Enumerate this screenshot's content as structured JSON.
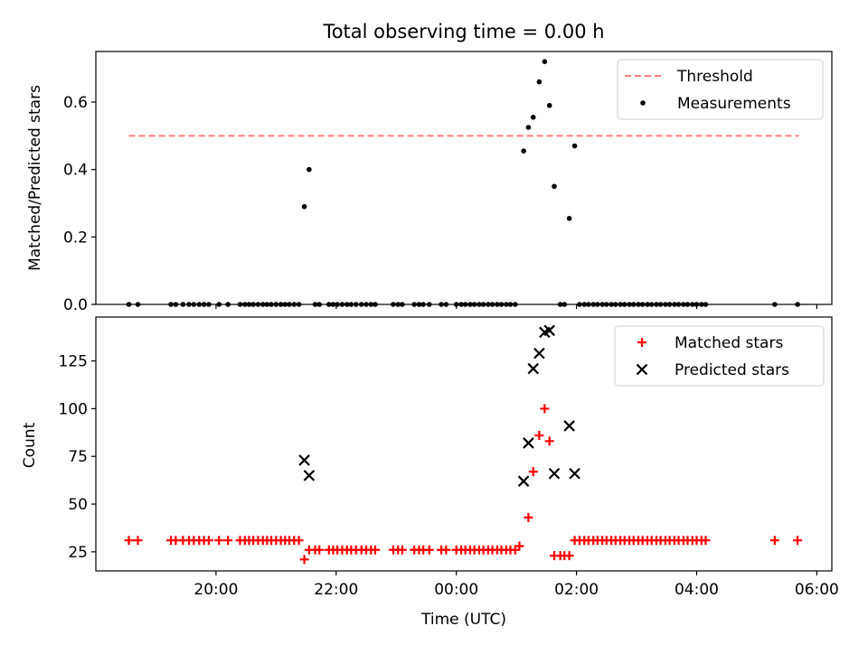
{
  "figure": {
    "title": "Total observing time = 0.00 h",
    "xlabel": "Time (UTC)"
  },
  "chart_data": [
    {
      "type": "scatter",
      "ylabel": "Matched/Predicted stars",
      "ylim": [
        0,
        0.75
      ],
      "xlim_hours": [
        18.0,
        30.25
      ],
      "yticks": [
        0.0,
        0.2,
        0.4,
        0.6
      ],
      "ytick_labels": [
        "0.0",
        "0.2",
        "0.4",
        "0.6"
      ],
      "legend": {
        "placement": "top-right",
        "entries": [
          "Threshold",
          "Measurements"
        ]
      },
      "threshold": {
        "name": "Threshold",
        "value": 0.5,
        "x_start": 18.55,
        "x_end": 29.7,
        "color": "#ff7f7f"
      },
      "series": [
        {
          "name": "Measurements",
          "color": "#000000",
          "points": [
            [
              18.55,
              0
            ],
            [
              18.7,
              0
            ],
            [
              19.25,
              0
            ],
            [
              19.33,
              0
            ],
            [
              19.45,
              0
            ],
            [
              19.55,
              0
            ],
            [
              19.63,
              0
            ],
            [
              19.72,
              0
            ],
            [
              19.8,
              0
            ],
            [
              19.88,
              0
            ],
            [
              20.05,
              0
            ],
            [
              20.2,
              0
            ],
            [
              20.4,
              0
            ],
            [
              20.48,
              0
            ],
            [
              20.55,
              0
            ],
            [
              20.62,
              0
            ],
            [
              20.7,
              0
            ],
            [
              20.78,
              0
            ],
            [
              20.85,
              0
            ],
            [
              20.92,
              0
            ],
            [
              21.0,
              0
            ],
            [
              21.08,
              0
            ],
            [
              21.15,
              0
            ],
            [
              21.22,
              0
            ],
            [
              21.3,
              0
            ],
            [
              21.38,
              0
            ],
            [
              21.47,
              0.29
            ],
            [
              21.55,
              0.4
            ],
            [
              21.65,
              0
            ],
            [
              21.72,
              0
            ],
            [
              21.88,
              0
            ],
            [
              21.95,
              0
            ],
            [
              22.02,
              0
            ],
            [
              22.1,
              0
            ],
            [
              22.18,
              0
            ],
            [
              22.25,
              0
            ],
            [
              22.33,
              0
            ],
            [
              22.42,
              0
            ],
            [
              22.5,
              0
            ],
            [
              22.58,
              0
            ],
            [
              22.65,
              0
            ],
            [
              22.95,
              0
            ],
            [
              23.03,
              0
            ],
            [
              23.1,
              0
            ],
            [
              23.3,
              0
            ],
            [
              23.38,
              0
            ],
            [
              23.45,
              0
            ],
            [
              23.55,
              0
            ],
            [
              23.75,
              0
            ],
            [
              23.83,
              0
            ],
            [
              24.0,
              0
            ],
            [
              24.08,
              0
            ],
            [
              24.15,
              0
            ],
            [
              24.23,
              0
            ],
            [
              24.3,
              0
            ],
            [
              24.38,
              0
            ],
            [
              24.45,
              0
            ],
            [
              24.53,
              0
            ],
            [
              24.6,
              0
            ],
            [
              24.68,
              0
            ],
            [
              24.75,
              0
            ],
            [
              24.83,
              0
            ],
            [
              24.9,
              0
            ],
            [
              24.98,
              0
            ],
            [
              25.12,
              0.455
            ],
            [
              25.2,
              0.525
            ],
            [
              25.28,
              0.555
            ],
            [
              25.38,
              0.66
            ],
            [
              25.47,
              0.72
            ],
            [
              25.55,
              0.59
            ],
            [
              25.63,
              0.35
            ],
            [
              25.73,
              0
            ],
            [
              25.8,
              0
            ],
            [
              25.88,
              0.255
            ],
            [
              25.97,
              0.47
            ],
            [
              26.05,
              0
            ],
            [
              26.13,
              0
            ],
            [
              26.2,
              0
            ],
            [
              26.28,
              0
            ],
            [
              26.35,
              0
            ],
            [
              26.43,
              0
            ],
            [
              26.5,
              0
            ],
            [
              26.58,
              0
            ],
            [
              26.65,
              0
            ],
            [
              26.73,
              0
            ],
            [
              26.8,
              0
            ],
            [
              26.88,
              0
            ],
            [
              26.95,
              0
            ],
            [
              27.03,
              0
            ],
            [
              27.1,
              0
            ],
            [
              27.18,
              0
            ],
            [
              27.25,
              0
            ],
            [
              27.33,
              0
            ],
            [
              27.4,
              0
            ],
            [
              27.48,
              0
            ],
            [
              27.55,
              0
            ],
            [
              27.63,
              0
            ],
            [
              27.7,
              0
            ],
            [
              27.78,
              0
            ],
            [
              27.85,
              0
            ],
            [
              27.93,
              0
            ],
            [
              28.0,
              0
            ],
            [
              28.08,
              0
            ],
            [
              28.15,
              0
            ],
            [
              29.3,
              0
            ],
            [
              29.68,
              0
            ]
          ]
        }
      ]
    },
    {
      "type": "scatter",
      "ylabel": "Count",
      "ylim": [
        15,
        148
      ],
      "xlim_hours": [
        18.0,
        30.25
      ],
      "yticks": [
        25,
        50,
        75,
        100,
        125
      ],
      "ytick_labels": [
        "25",
        "50",
        "75",
        "100",
        "125"
      ],
      "xticks_hours": [
        20,
        22,
        24,
        26,
        28,
        30
      ],
      "xtick_labels": [
        "20:00",
        "22:00",
        "00:00",
        "02:00",
        "04:00",
        "06:00"
      ],
      "legend": {
        "placement": "top-right",
        "entries": [
          "Matched stars",
          "Predicted stars"
        ]
      },
      "series": [
        {
          "name": "Matched stars",
          "marker": "plus",
          "color": "#ff0000",
          "points": [
            [
              18.55,
              31
            ],
            [
              18.7,
              31
            ],
            [
              19.25,
              31
            ],
            [
              19.33,
              31
            ],
            [
              19.45,
              31
            ],
            [
              19.55,
              31
            ],
            [
              19.63,
              31
            ],
            [
              19.72,
              31
            ],
            [
              19.8,
              31
            ],
            [
              19.88,
              31
            ],
            [
              20.05,
              31
            ],
            [
              20.2,
              31
            ],
            [
              20.4,
              31
            ],
            [
              20.48,
              31
            ],
            [
              20.55,
              31
            ],
            [
              20.62,
              31
            ],
            [
              20.7,
              31
            ],
            [
              20.78,
              31
            ],
            [
              20.85,
              31
            ],
            [
              20.92,
              31
            ],
            [
              21.0,
              31
            ],
            [
              21.08,
              31
            ],
            [
              21.15,
              31
            ],
            [
              21.22,
              31
            ],
            [
              21.3,
              31
            ],
            [
              21.38,
              31
            ],
            [
              21.47,
              21
            ],
            [
              21.55,
              26
            ],
            [
              21.65,
              26
            ],
            [
              21.72,
              26
            ],
            [
              21.88,
              26
            ],
            [
              21.95,
              26
            ],
            [
              22.02,
              26
            ],
            [
              22.1,
              26
            ],
            [
              22.18,
              26
            ],
            [
              22.25,
              26
            ],
            [
              22.33,
              26
            ],
            [
              22.42,
              26
            ],
            [
              22.5,
              26
            ],
            [
              22.58,
              26
            ],
            [
              22.65,
              26
            ],
            [
              22.95,
              26
            ],
            [
              23.03,
              26
            ],
            [
              23.1,
              26
            ],
            [
              23.3,
              26
            ],
            [
              23.38,
              26
            ],
            [
              23.45,
              26
            ],
            [
              23.55,
              26
            ],
            [
              23.75,
              26
            ],
            [
              23.83,
              26
            ],
            [
              24.0,
              26
            ],
            [
              24.08,
              26
            ],
            [
              24.15,
              26
            ],
            [
              24.23,
              26
            ],
            [
              24.3,
              26
            ],
            [
              24.38,
              26
            ],
            [
              24.45,
              26
            ],
            [
              24.53,
              26
            ],
            [
              24.6,
              26
            ],
            [
              24.68,
              26
            ],
            [
              24.75,
              26
            ],
            [
              24.83,
              26
            ],
            [
              24.9,
              26
            ],
            [
              24.98,
              26
            ],
            [
              25.05,
              28
            ],
            [
              25.2,
              43
            ],
            [
              25.28,
              67
            ],
            [
              25.38,
              86
            ],
            [
              25.47,
              100
            ],
            [
              25.55,
              83
            ],
            [
              25.63,
              23
            ],
            [
              25.73,
              23
            ],
            [
              25.8,
              23
            ],
            [
              25.88,
              23
            ],
            [
              25.97,
              31
            ],
            [
              26.05,
              31
            ],
            [
              26.13,
              31
            ],
            [
              26.2,
              31
            ],
            [
              26.28,
              31
            ],
            [
              26.35,
              31
            ],
            [
              26.43,
              31
            ],
            [
              26.5,
              31
            ],
            [
              26.58,
              31
            ],
            [
              26.65,
              31
            ],
            [
              26.73,
              31
            ],
            [
              26.8,
              31
            ],
            [
              26.88,
              31
            ],
            [
              26.95,
              31
            ],
            [
              27.03,
              31
            ],
            [
              27.1,
              31
            ],
            [
              27.18,
              31
            ],
            [
              27.25,
              31
            ],
            [
              27.33,
              31
            ],
            [
              27.4,
              31
            ],
            [
              27.48,
              31
            ],
            [
              27.55,
              31
            ],
            [
              27.63,
              31
            ],
            [
              27.7,
              31
            ],
            [
              27.78,
              31
            ],
            [
              27.85,
              31
            ],
            [
              27.93,
              31
            ],
            [
              28.0,
              31
            ],
            [
              28.08,
              31
            ],
            [
              28.15,
              31
            ],
            [
              29.3,
              31
            ],
            [
              29.68,
              31
            ]
          ]
        },
        {
          "name": "Predicted stars",
          "marker": "x",
          "color": "#000000",
          "points": [
            [
              21.47,
              73
            ],
            [
              21.55,
              65
            ],
            [
              25.12,
              62
            ],
            [
              25.2,
              82
            ],
            [
              25.28,
              121
            ],
            [
              25.38,
              129
            ],
            [
              25.47,
              140
            ],
            [
              25.55,
              141
            ],
            [
              25.63,
              66
            ],
            [
              25.88,
              91
            ],
            [
              25.97,
              66
            ]
          ]
        }
      ]
    }
  ]
}
